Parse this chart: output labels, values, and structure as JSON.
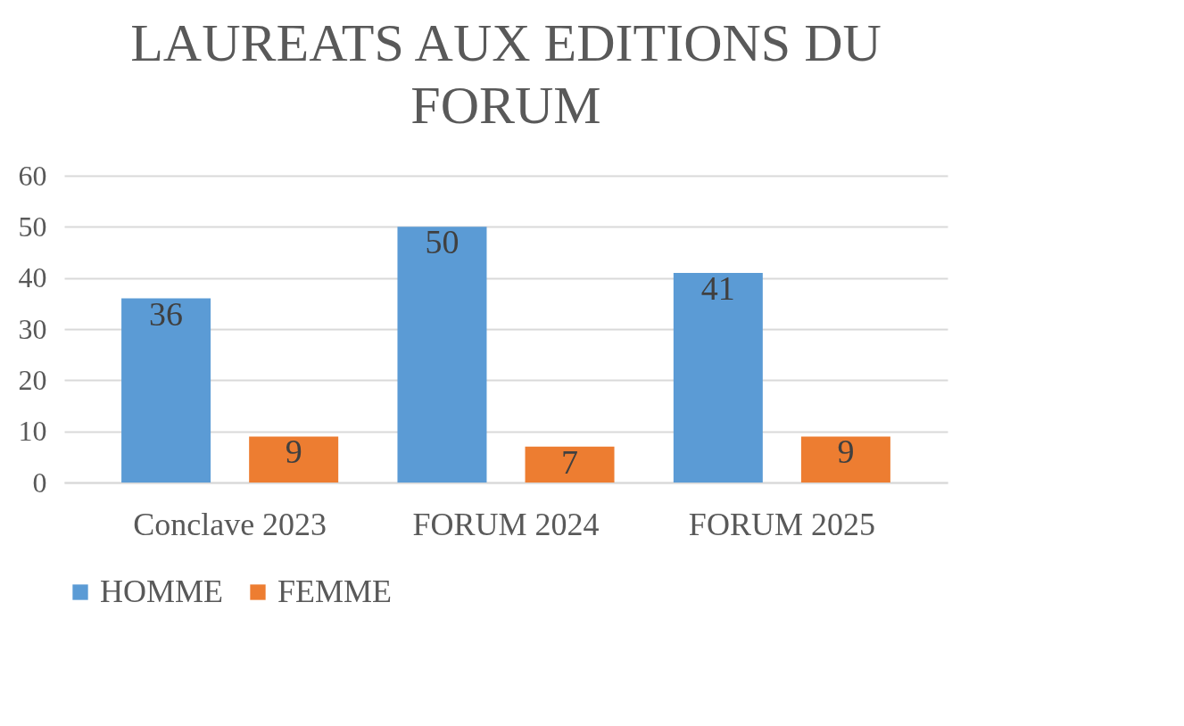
{
  "chart_data": {
    "type": "bar",
    "title": "LAUREATS AUX EDITIONS  DU FORUM",
    "categories": [
      "Conclave 2023",
      "FORUM 2024",
      "FORUM 2025"
    ],
    "series": [
      {
        "name": "HOMME",
        "color": "#5b9bd5",
        "values": [
          36,
          50,
          41
        ]
      },
      {
        "name": "FEMME",
        "color": "#ed7d31",
        "values": [
          9,
          7,
          9
        ]
      }
    ],
    "ylim": [
      0,
      60
    ],
    "yticks": [
      0,
      10,
      20,
      30,
      40,
      50,
      60
    ],
    "grid": "y",
    "legend": "bottom",
    "data_labels": true
  }
}
